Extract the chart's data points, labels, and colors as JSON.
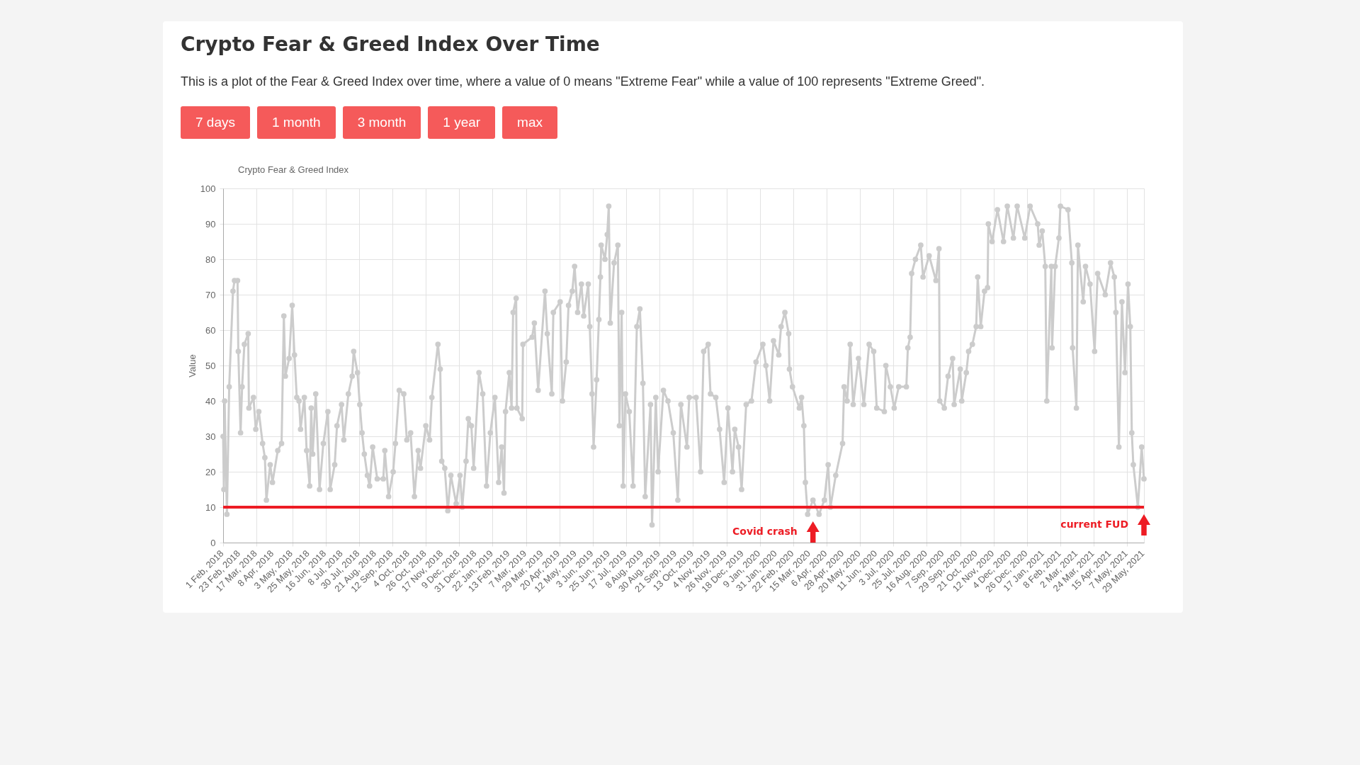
{
  "chart_data": {
    "type": "line",
    "title": "Crypto Fear & Greed Index Over Time",
    "subtitle": "This is a plot of the Fear & Greed Index over time, where a value of 0 means \"Extreme Fear\" while a value of 100 represents \"Extreme Greed\".",
    "ylabel": "Value",
    "annotations": [
      "7 days",
      "1 month",
      "3 month",
      "1 year",
      "max",
      {
        "text": "Covid crash",
        "x": "2020-03-19",
        "y": 3
      },
      {
        "text": "current FUD",
        "x": "2021-05-29",
        "y": 5
      }
    ],
    "x": [
      "2018-02-01",
      "2018-02-02",
      "2018-02-03",
      "2018-02-06",
      "2018-02-09",
      "2018-02-14",
      "2018-02-16",
      "2018-02-20",
      "2018-02-21",
      "2018-02-24",
      "2018-02-26",
      "2018-03-01",
      "2018-03-06",
      "2018-03-07",
      "2018-03-13",
      "2018-03-16",
      "2018-03-20",
      "2018-03-25",
      "2018-03-28",
      "2018-03-30",
      "2018-04-04",
      "2018-04-07",
      "2018-04-14",
      "2018-04-19",
      "2018-04-22",
      "2018-04-24",
      "2018-04-29",
      "2018-05-03",
      "2018-05-06",
      "2018-05-09",
      "2018-05-12",
      "2018-05-14",
      "2018-05-19",
      "2018-05-22",
      "2018-05-26",
      "2018-05-28",
      "2018-05-30",
      "2018-06-03",
      "2018-06-08",
      "2018-06-13",
      "2018-06-19",
      "2018-06-22",
      "2018-06-28",
      "2018-07-01",
      "2018-07-07",
      "2018-07-10",
      "2018-07-16",
      "2018-07-21",
      "2018-07-23",
      "2018-07-28",
      "2018-07-31",
      "2018-08-03",
      "2018-08-06",
      "2018-08-10",
      "2018-08-13",
      "2018-08-17",
      "2018-08-23",
      "2018-08-31",
      "2018-09-02",
      "2018-09-07",
      "2018-09-13",
      "2018-09-16",
      "2018-09-21",
      "2018-09-27",
      "2018-10-01",
      "2018-10-06",
      "2018-10-11",
      "2018-10-16",
      "2018-10-19",
      "2018-10-26",
      "2018-10-31",
      "2018-11-03",
      "2018-11-11",
      "2018-11-14",
      "2018-11-16",
      "2018-11-20",
      "2018-11-24",
      "2018-11-28",
      "2018-12-05",
      "2018-12-10",
      "2018-12-13",
      "2018-12-18",
      "2018-12-21",
      "2018-12-25",
      "2018-12-28",
      "2019-01-04",
      "2019-01-09",
      "2019-01-14",
      "2019-01-19",
      "2019-01-25",
      "2019-01-30",
      "2019-02-03",
      "2019-02-06",
      "2019-02-08",
      "2019-02-13",
      "2019-02-16",
      "2019-02-18",
      "2019-02-22",
      "2019-02-23",
      "2019-03-02",
      "2019-03-03",
      "2019-03-15",
      "2019-03-18",
      "2019-03-23",
      "2019-04-01",
      "2019-04-04",
      "2019-04-10",
      "2019-04-12",
      "2019-04-21",
      "2019-04-24",
      "2019-04-29",
      "2019-05-02",
      "2019-05-07",
      "2019-05-10",
      "2019-05-14",
      "2019-05-19",
      "2019-05-22",
      "2019-05-28",
      "2019-05-30",
      "2019-06-02",
      "2019-06-04",
      "2019-06-08",
      "2019-06-11",
      "2019-06-13",
      "2019-06-14",
      "2019-06-19",
      "2019-06-22",
      "2019-06-24",
      "2019-06-26",
      "2019-07-01",
      "2019-07-06",
      "2019-07-08",
      "2019-07-11",
      "2019-07-13",
      "2019-07-16",
      "2019-07-21",
      "2019-07-26",
      "2019-07-31",
      "2019-08-04",
      "2019-08-08",
      "2019-08-11",
      "2019-08-18",
      "2019-08-20",
      "2019-08-25",
      "2019-08-28",
      "2019-09-04",
      "2019-09-10",
      "2019-09-17",
      "2019-09-23",
      "2019-09-27",
      "2019-10-05",
      "2019-10-08",
      "2019-10-17",
      "2019-10-23",
      "2019-10-27",
      "2019-11-02",
      "2019-11-05",
      "2019-11-12",
      "2019-11-17",
      "2019-11-23",
      "2019-11-28",
      "2019-12-04",
      "2019-12-07",
      "2019-12-12",
      "2019-12-16",
      "2019-12-22",
      "2019-12-29",
      "2020-01-04",
      "2020-01-13",
      "2020-01-17",
      "2020-01-22",
      "2020-01-27",
      "2020-02-03",
      "2020-02-06",
      "2020-02-11",
      "2020-02-16",
      "2020-02-17",
      "2020-02-21",
      "2020-03-01",
      "2020-03-04",
      "2020-03-07",
      "2020-03-09",
      "2020-03-12",
      "2020-03-19",
      "2020-03-27",
      "2020-04-03",
      "2020-04-08",
      "2020-04-11",
      "2020-04-18",
      "2020-04-27",
      "2020-04-29",
      "2020-05-03",
      "2020-05-07",
      "2020-05-11",
      "2020-05-18",
      "2020-05-25",
      "2020-06-01",
      "2020-06-07",
      "2020-06-11",
      "2020-06-21",
      "2020-06-23",
      "2020-06-29",
      "2020-07-04",
      "2020-07-10",
      "2020-07-20",
      "2020-07-22",
      "2020-07-25",
      "2020-07-27",
      "2020-08-01",
      "2020-08-08",
      "2020-08-11",
      "2020-08-19",
      "2020-08-28",
      "2020-09-01",
      "2020-09-02",
      "2020-09-08",
      "2020-09-13",
      "2020-09-19",
      "2020-09-21",
      "2020-09-29",
      "2020-10-01",
      "2020-10-07",
      "2020-10-10",
      "2020-10-15",
      "2020-10-20",
      "2020-10-22",
      "2020-10-26",
      "2020-10-31",
      "2020-11-04",
      "2020-11-05",
      "2020-11-10",
      "2020-11-17",
      "2020-11-25",
      "2020-11-30",
      "2020-12-08",
      "2020-12-13",
      "2020-12-23",
      "2020-12-30",
      "2021-01-09",
      "2021-01-11",
      "2021-01-15",
      "2021-01-19",
      "2021-01-21",
      "2021-01-27",
      "2021-01-28",
      "2021-02-01",
      "2021-02-06",
      "2021-02-08",
      "2021-02-18",
      "2021-02-23",
      "2021-02-24",
      "2021-03-01",
      "2021-03-03",
      "2021-03-10",
      "2021-03-13",
      "2021-03-19",
      "2021-03-25",
      "2021-03-29",
      "2021-04-08",
      "2021-04-15",
      "2021-04-20",
      "2021-04-22",
      "2021-04-26",
      "2021-04-30",
      "2021-05-04",
      "2021-05-08",
      "2021-05-11",
      "2021-05-13",
      "2021-05-15",
      "2021-05-21",
      "2021-05-26",
      "2021-05-29"
    ],
    "series": [
      {
        "name": "Crypto Fear & Greed Index",
        "color": "#cccccc",
        "values": [
          30,
          15,
          40,
          8,
          44,
          71,
          74,
          74,
          54,
          31,
          44,
          56,
          59,
          38,
          41,
          32,
          37,
          28,
          24,
          12,
          22,
          17,
          26,
          28,
          64,
          47,
          52,
          67,
          53,
          41,
          40,
          32,
          41,
          26,
          16,
          38,
          25,
          42,
          15,
          28,
          37,
          15,
          22,
          33,
          39,
          29,
          42,
          47,
          54,
          48,
          39,
          31,
          25,
          19,
          16,
          27,
          18,
          18,
          26,
          13,
          20,
          28,
          43,
          42,
          29,
          31,
          13,
          26,
          21,
          33,
          29,
          41,
          56,
          49,
          23,
          21,
          9,
          19,
          11,
          19,
          10,
          23,
          35,
          33,
          21,
          48,
          42,
          16,
          31,
          41,
          17,
          27,
          14,
          37,
          48,
          38,
          65,
          69,
          38,
          35,
          56,
          58,
          62,
          43,
          71,
          59,
          42,
          65,
          68,
          40,
          51,
          67,
          71,
          78,
          65,
          73,
          64,
          73,
          61,
          42,
          27,
          46,
          63,
          75,
          84,
          80,
          87,
          95,
          62,
          79,
          84,
          33,
          65,
          16,
          42,
          37,
          16,
          61,
          66,
          45,
          13,
          39,
          5,
          41,
          20,
          43,
          40,
          31,
          12,
          39,
          27,
          41,
          41,
          20,
          54,
          56,
          42,
          41,
          32,
          17,
          38,
          20,
          32,
          27,
          15,
          39,
          40,
          51,
          56,
          50,
          40,
          57,
          53,
          61,
          65,
          59,
          49,
          44,
          38,
          41,
          33,
          17,
          8,
          12,
          8,
          12,
          22,
          10,
          19,
          28,
          44,
          40,
          56,
          39,
          52,
          39,
          56,
          54,
          38,
          37,
          50,
          44,
          38,
          44,
          44,
          55,
          58,
          76,
          80,
          84,
          75,
          81,
          74,
          83,
          40,
          38,
          47,
          52,
          39,
          49,
          40,
          48,
          54,
          56,
          61,
          75,
          61,
          71,
          72,
          90,
          85,
          94,
          85,
          95,
          86,
          95,
          86,
          95,
          90,
          84,
          88,
          78,
          40,
          78,
          55,
          78,
          86,
          95,
          94,
          79,
          55,
          38,
          84,
          68,
          78,
          73,
          54,
          76,
          70,
          79,
          75,
          65,
          27,
          68,
          48,
          73,
          61,
          31,
          22,
          10,
          27,
          18
        ]
      }
    ],
    "xlim": [
      "2018-02-01",
      "2021-05-29"
    ],
    "xticks": [
      {
        "value": "2018-02-01",
        "label": "1 Feb, 2018"
      },
      {
        "value": "2018-02-23",
        "label": "23 Feb, 2018"
      },
      {
        "value": "2018-03-17",
        "label": "17 Mar, 2018"
      },
      {
        "value": "2018-04-08",
        "label": "8 Apr, 2018"
      },
      {
        "value": "2018-05-03",
        "label": "3 May, 2018"
      },
      {
        "value": "2018-05-25",
        "label": "25 May, 2018"
      },
      {
        "value": "2018-06-16",
        "label": "16 Jun, 2018"
      },
      {
        "value": "2018-07-08",
        "label": "8 Jul, 2018"
      },
      {
        "value": "2018-07-30",
        "label": "30 Jul, 2018"
      },
      {
        "value": "2018-08-21",
        "label": "21 Aug, 2018"
      },
      {
        "value": "2018-09-12",
        "label": "12 Sep, 2018"
      },
      {
        "value": "2018-10-04",
        "label": "4 Oct, 2018"
      },
      {
        "value": "2018-10-26",
        "label": "26 Oct, 2018"
      },
      {
        "value": "2018-11-17",
        "label": "17 Nov, 2018"
      },
      {
        "value": "2018-12-09",
        "label": "9 Dec, 2018"
      },
      {
        "value": "2018-12-31",
        "label": "31 Dec, 2018"
      },
      {
        "value": "2019-01-22",
        "label": "22 Jan, 2019"
      },
      {
        "value": "2019-02-13",
        "label": "13 Feb, 2019"
      },
      {
        "value": "2019-03-07",
        "label": "7 Mar, 2019"
      },
      {
        "value": "2019-03-29",
        "label": "29 Mar, 2019"
      },
      {
        "value": "2019-04-20",
        "label": "20 Apr, 2019"
      },
      {
        "value": "2019-05-12",
        "label": "12 May, 2019"
      },
      {
        "value": "2019-06-03",
        "label": "3 Jun, 2019"
      },
      {
        "value": "2019-06-25",
        "label": "25 Jun, 2019"
      },
      {
        "value": "2019-07-17",
        "label": "17 Jul, 2019"
      },
      {
        "value": "2019-08-08",
        "label": "8 Aug, 2019"
      },
      {
        "value": "2019-08-30",
        "label": "30 Aug, 2019"
      },
      {
        "value": "2019-09-21",
        "label": "21 Sep, 2019"
      },
      {
        "value": "2019-10-13",
        "label": "13 Oct, 2019"
      },
      {
        "value": "2019-11-04",
        "label": "4 Nov, 2019"
      },
      {
        "value": "2019-11-26",
        "label": "26 Nov, 2019"
      },
      {
        "value": "2019-12-18",
        "label": "18 Dec, 2019"
      },
      {
        "value": "2020-01-09",
        "label": "9 Jan, 2020"
      },
      {
        "value": "2020-01-31",
        "label": "31 Jan, 2020"
      },
      {
        "value": "2020-02-22",
        "label": "22 Feb, 2020"
      },
      {
        "value": "2020-03-15",
        "label": "15 Mar, 2020"
      },
      {
        "value": "2020-04-06",
        "label": "6 Apr, 2020"
      },
      {
        "value": "2020-04-28",
        "label": "28 Apr, 2020"
      },
      {
        "value": "2020-05-20",
        "label": "20 May, 2020"
      },
      {
        "value": "2020-06-11",
        "label": "11 Jun, 2020"
      },
      {
        "value": "2020-07-03",
        "label": "3 Jul, 2020"
      },
      {
        "value": "2020-07-25",
        "label": "25 Jul, 2020"
      },
      {
        "value": "2020-08-16",
        "label": "16 Aug, 2020"
      },
      {
        "value": "2020-09-07",
        "label": "7 Sep, 2020"
      },
      {
        "value": "2020-09-29",
        "label": "29 Sep, 2020"
      },
      {
        "value": "2020-10-21",
        "label": "21 Oct, 2020"
      },
      {
        "value": "2020-11-12",
        "label": "12 Nov, 2020"
      },
      {
        "value": "2020-12-04",
        "label": "4 Dec, 2020"
      },
      {
        "value": "2020-12-26",
        "label": "26 Dec, 2020"
      },
      {
        "value": "2021-01-17",
        "label": "17 Jan, 2021"
      },
      {
        "value": "2021-02-08",
        "label": "8 Feb, 2021"
      },
      {
        "value": "2021-03-02",
        "label": "2 Mar, 2021"
      },
      {
        "value": "2021-03-24",
        "label": "24 Mar, 2021"
      },
      {
        "value": "2021-04-15",
        "label": "15 Apr, 2021"
      },
      {
        "value": "2021-05-07",
        "label": "7 May, 2021"
      },
      {
        "value": "2021-05-29",
        "label": "29 May, 2021"
      }
    ],
    "ylim": [
      0,
      100
    ],
    "yticks": [
      0,
      10,
      20,
      30,
      40,
      50,
      60,
      70,
      80,
      90,
      100
    ],
    "ref_lines": [
      {
        "axis": "y",
        "value": 10,
        "color": "#ed1c24"
      }
    ],
    "grid": true,
    "legend": "top",
    "marker": "circle",
    "line_style": "solid"
  }
}
